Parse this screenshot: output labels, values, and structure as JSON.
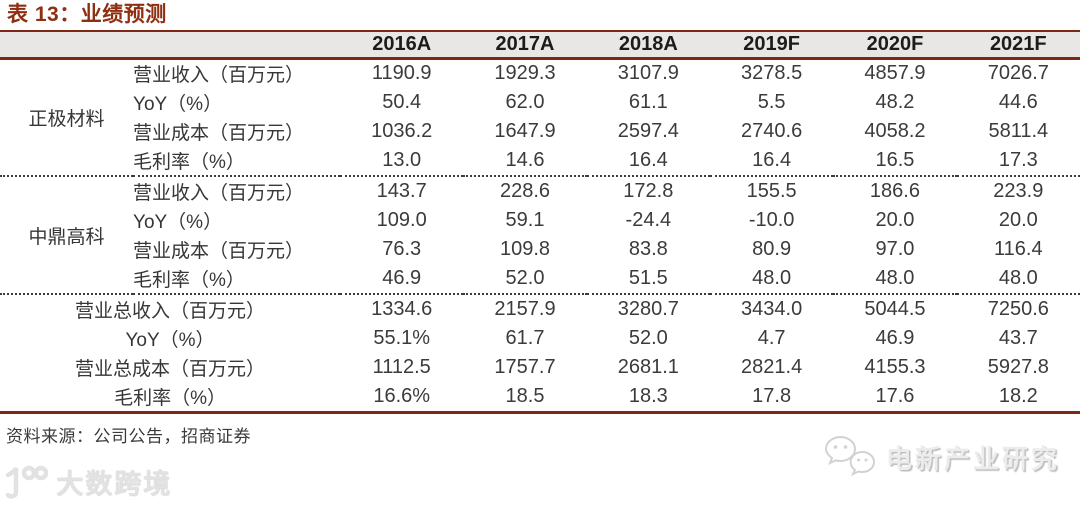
{
  "chart_data": {
    "type": "table",
    "title": "表 13：业绩预测",
    "columns": [
      "2016A",
      "2017A",
      "2018A",
      "2019F",
      "2020F",
      "2021F"
    ],
    "groups": [
      {
        "name": "正极材料",
        "rows": [
          {
            "label": "营业收入（百万元）",
            "values": [
              "1190.9",
              "1929.3",
              "3107.9",
              "3278.5",
              "4857.9",
              "7026.7"
            ]
          },
          {
            "label": "YoY（%）",
            "values": [
              "50.4",
              "62.0",
              "61.1",
              "5.5",
              "48.2",
              "44.6"
            ]
          },
          {
            "label": "营业成本（百万元）",
            "values": [
              "1036.2",
              "1647.9",
              "2597.4",
              "2740.6",
              "4058.2",
              "5811.4"
            ]
          },
          {
            "label": "毛利率（%）",
            "values": [
              "13.0",
              "14.6",
              "16.4",
              "16.4",
              "16.5",
              "17.3"
            ]
          }
        ]
      },
      {
        "name": "中鼎高科",
        "rows": [
          {
            "label": "营业收入（百万元）",
            "values": [
              "143.7",
              "228.6",
              "172.8",
              "155.5",
              "186.6",
              "223.9"
            ]
          },
          {
            "label": "YoY（%）",
            "values": [
              "109.0",
              "59.1",
              "-24.4",
              "-10.0",
              "20.0",
              "20.0"
            ]
          },
          {
            "label": "营业成本（百万元）",
            "values": [
              "76.3",
              "109.8",
              "83.8",
              "80.9",
              "97.0",
              "116.4"
            ]
          },
          {
            "label": "毛利率（%）",
            "values": [
              "46.9",
              "52.0",
              "51.5",
              "48.0",
              "48.0",
              "48.0"
            ]
          }
        ]
      }
    ],
    "totals": [
      {
        "label": "营业总收入（百万元）",
        "values": [
          "1334.6",
          "2157.9",
          "3280.7",
          "3434.0",
          "5044.5",
          "7250.6"
        ]
      },
      {
        "label": "YoY（%）",
        "values": [
          "55.1%",
          "61.7",
          "52.0",
          "4.7",
          "46.9",
          "43.7"
        ]
      },
      {
        "label": "营业总成本（百万元）",
        "values": [
          "1112.5",
          "1757.7",
          "2681.1",
          "2821.4",
          "4155.3",
          "5927.8"
        ]
      },
      {
        "label": "毛利率（%）",
        "values": [
          "16.6%",
          "18.5",
          "18.3",
          "17.8",
          "17.6",
          "18.2"
        ]
      }
    ],
    "source": "资料来源：公司公告，招商证券"
  },
  "watermarks": {
    "left": "大数跨境",
    "right": "电新产业研究"
  },
  "colors": {
    "accent_maroon": "#7e2815",
    "title_red": "#8e2f12",
    "header_bg": "#e9e7e5",
    "body_text": "#3b3b3b",
    "watermark_gray": "#e2e2e2"
  }
}
